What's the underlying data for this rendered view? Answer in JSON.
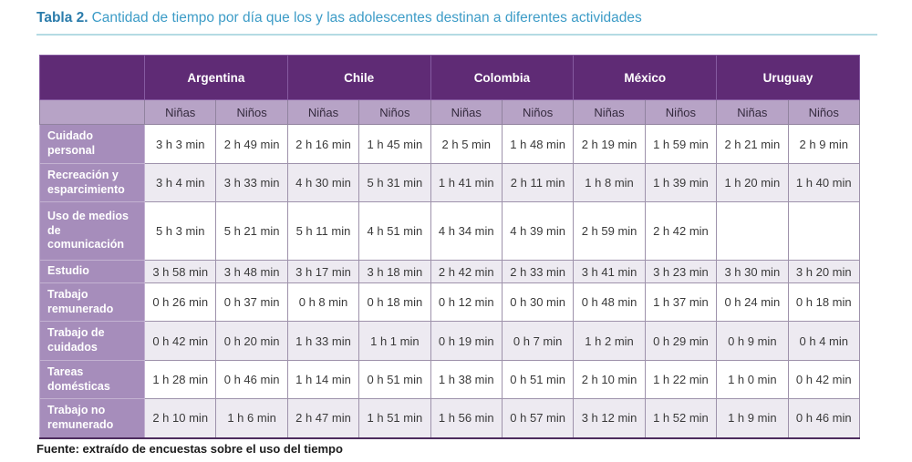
{
  "title": {
    "prefix": "Tabla 2.",
    "text": "Cantidad de tiempo por día que los y las adolescentes destinan a diferentes actividades"
  },
  "table": {
    "countries": [
      "Argentina",
      "Chile",
      "Colombia",
      "México",
      "Uruguay"
    ],
    "col_headers": [
      "Niñas",
      "Niños",
      "Niñas",
      "Niños",
      "Niñas",
      "Niños",
      "Niñas",
      "Niños",
      "Niñas",
      "Niños"
    ],
    "rows": [
      {
        "label": "Cuidado personal",
        "values": [
          "3 h 3 min",
          "2 h 49 min",
          "2 h 16 min",
          "1 h 45 min",
          "2 h 5 min",
          "1 h 48 min",
          "2 h 19 min",
          "1 h 59 min",
          "2 h 21 min",
          "2 h 9 min"
        ]
      },
      {
        "label": "Recreación y esparcimiento",
        "values": [
          "3 h 4 min",
          "3 h 33 min",
          "4 h 30 min",
          "5 h 31 min",
          "1 h 41 min",
          "2 h 11 min",
          "1 h 8 min",
          "1 h 39 min",
          "1 h 20 min",
          "1 h 40 min"
        ]
      },
      {
        "label": "Uso de medios de comunicación",
        "values": [
          "5 h 3 min",
          "5 h 21 min",
          "5 h 11 min",
          "4 h 51 min",
          "4 h 34 min",
          "4 h 39 min",
          "2 h 59 min",
          "2 h 42 min",
          "",
          ""
        ]
      },
      {
        "label": "Estudio",
        "values": [
          "3 h 58 min",
          "3 h 48 min",
          "3 h 17 min",
          "3 h 18 min",
          "2 h 42 min",
          "2 h 33 min",
          "3 h 41 min",
          "3 h 23 min",
          "3 h 30 min",
          "3 h 20 min"
        ]
      },
      {
        "label": "Trabajo remunerado",
        "values": [
          "0 h 26 min",
          "0 h 37 min",
          "0 h 8 min",
          "0 h 18 min",
          "0 h 12 min",
          "0 h 30 min",
          "0 h 48 min",
          "1 h 37 min",
          "0 h 24 min",
          "0 h 18 min"
        ]
      },
      {
        "label": "Trabajo de cuidados",
        "values": [
          "0 h 42 min",
          "0 h 20 min",
          "1 h 33 min",
          "1 h 1 min",
          "0 h 19 min",
          "0 h 7 min",
          "1 h 2 min",
          "0 h 29 min",
          "0 h 9 min",
          "0 h 4 min"
        ]
      },
      {
        "label": "Tareas domésticas",
        "values": [
          "1 h 28 min",
          "0 h 46 min",
          "1 h 14 min",
          "0 h 51 min",
          "1 h 38 min",
          "0 h 51 min",
          "2 h 10 min",
          "1 h 22 min",
          "1 h 0 min",
          "0 h 42 min"
        ]
      },
      {
        "label": "Trabajo no remunerado",
        "values": [
          "2 h 10 min",
          "1 h 6 min",
          "2 h 47 min",
          "1 h 51 min",
          "1 h 56 min",
          "0 h 57 min",
          "3 h 12 min",
          "1 h 52 min",
          "1 h 9 min",
          "0 h 46 min"
        ]
      }
    ]
  },
  "footer": {
    "source": "Fuente: extraído de encuestas sobre el uso del tiempo"
  },
  "colors": {
    "header_purple": "#5f2b75",
    "subheader_lavender": "#b7a3c6",
    "row_label_lavender": "#a68dbb",
    "alt_row": "#edeaf1",
    "title_blue": "#3d9cc7",
    "title_bold_blue": "#2b7cab",
    "title_underline": "#b5dbe3",
    "table_bottom_border": "#4d2c5e"
  }
}
